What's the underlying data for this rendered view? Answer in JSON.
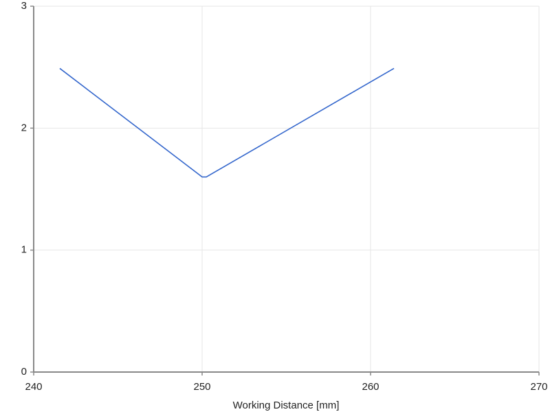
{
  "chart_data": {
    "type": "line",
    "x_label": "Working Distance [mm]",
    "x": [
      241.55,
      250,
      250.25,
      261.39
    ],
    "series": [
      {
        "color": "#3366cc",
        "values": [
          2.49,
          1.6,
          1.6,
          2.49
        ]
      }
    ],
    "xlim": [
      240,
      270
    ],
    "xticks": [
      240,
      250,
      260,
      270
    ],
    "ylim": [
      0,
      3
    ],
    "yticks": [
      0,
      1,
      2,
      3
    ],
    "grid": true
  }
}
